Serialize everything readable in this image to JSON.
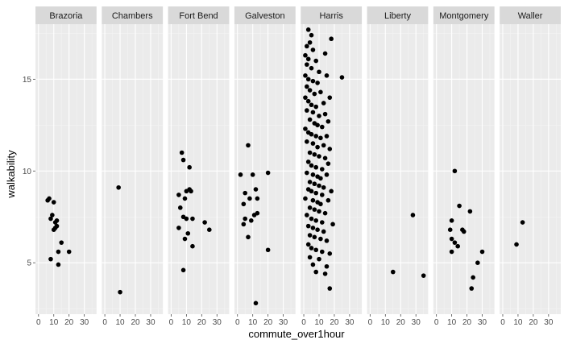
{
  "chart_data": {
    "type": "scatter",
    "xlabel": "commute_over1hour",
    "ylabel": "walkability",
    "xlim": [
      -2,
      38
    ],
    "ylim": [
      2.2,
      18.0
    ],
    "x_ticks": [
      0,
      10,
      20,
      30
    ],
    "y_ticks": [
      5,
      10,
      15
    ],
    "grid": true,
    "panel_background": "#ebebeb",
    "strip_background": "#d9d9d9",
    "point_color": "#000000",
    "facets": [
      {
        "name": "Brazoria",
        "points": [
          [
            6,
            8.4
          ],
          [
            7,
            8.5
          ],
          [
            8,
            7.4
          ],
          [
            9,
            7.6
          ],
          [
            10,
            8.3
          ],
          [
            11,
            7.2
          ],
          [
            12,
            7.3
          ],
          [
            12,
            7.0
          ],
          [
            11,
            6.9
          ],
          [
            10,
            6.8
          ],
          [
            15,
            6.1
          ],
          [
            13,
            5.6
          ],
          [
            20,
            5.6
          ],
          [
            8,
            5.2
          ],
          [
            13,
            4.9
          ]
        ]
      },
      {
        "name": "Chambers",
        "points": [
          [
            9,
            9.1
          ],
          [
            10,
            3.4
          ]
        ]
      },
      {
        "name": "Fort Bend",
        "points": [
          [
            7,
            11.0
          ],
          [
            8,
            10.6
          ],
          [
            12,
            10.2
          ],
          [
            5,
            8.7
          ],
          [
            10,
            8.9
          ],
          [
            12,
            9.0
          ],
          [
            13,
            8.9
          ],
          [
            9,
            8.5
          ],
          [
            6,
            8.0
          ],
          [
            8,
            7.5
          ],
          [
            10,
            7.4
          ],
          [
            14,
            7.4
          ],
          [
            22,
            7.2
          ],
          [
            25,
            6.8
          ],
          [
            5,
            6.9
          ],
          [
            11,
            6.6
          ],
          [
            9,
            6.3
          ],
          [
            14,
            5.9
          ],
          [
            8,
            4.6
          ]
        ]
      },
      {
        "name": "Galveston",
        "points": [
          [
            7,
            11.4
          ],
          [
            2,
            9.8
          ],
          [
            10,
            9.8
          ],
          [
            20,
            9.9
          ],
          [
            5,
            8.8
          ],
          [
            8,
            8.5
          ],
          [
            12,
            9.0
          ],
          [
            13,
            8.5
          ],
          [
            4,
            8.2
          ],
          [
            11,
            7.6
          ],
          [
            5,
            7.4
          ],
          [
            9,
            7.3
          ],
          [
            13,
            7.7
          ],
          [
            4,
            7.1
          ],
          [
            7,
            6.4
          ],
          [
            20,
            5.7
          ],
          [
            12,
            2.8
          ]
        ]
      },
      {
        "name": "Harris",
        "points": [
          [
            3,
            17.7
          ],
          [
            5,
            17.4
          ],
          [
            4,
            17.0
          ],
          [
            18,
            17.2
          ],
          [
            2,
            16.8
          ],
          [
            6,
            16.6
          ],
          [
            1,
            16.3
          ],
          [
            3,
            16.1
          ],
          [
            8,
            16.0
          ],
          [
            14,
            16.4
          ],
          [
            2,
            15.8
          ],
          [
            5,
            15.6
          ],
          [
            10,
            15.4
          ],
          [
            25,
            15.1
          ],
          [
            1,
            15.2
          ],
          [
            3,
            15.0
          ],
          [
            6,
            14.9
          ],
          [
            9,
            14.8
          ],
          [
            15,
            15.2
          ],
          [
            2,
            14.6
          ],
          [
            4,
            14.4
          ],
          [
            7,
            14.2
          ],
          [
            11,
            14.3
          ],
          [
            17,
            14.0
          ],
          [
            1,
            14.0
          ],
          [
            3,
            13.8
          ],
          [
            5,
            13.6
          ],
          [
            8,
            13.5
          ],
          [
            13,
            13.7
          ],
          [
            2,
            13.3
          ],
          [
            6,
            13.2
          ],
          [
            10,
            13.0
          ],
          [
            14,
            13.1
          ],
          [
            4,
            12.8
          ],
          [
            7,
            12.6
          ],
          [
            9,
            12.5
          ],
          [
            12,
            12.4
          ],
          [
            16,
            12.7
          ],
          [
            1,
            12.3
          ],
          [
            3,
            12.1
          ],
          [
            5,
            12.0
          ],
          [
            8,
            11.9
          ],
          [
            11,
            11.8
          ],
          [
            15,
            11.9
          ],
          [
            2,
            11.6
          ],
          [
            6,
            11.5
          ],
          [
            9,
            11.3
          ],
          [
            13,
            11.4
          ],
          [
            17,
            11.2
          ],
          [
            4,
            11.0
          ],
          [
            7,
            10.9
          ],
          [
            10,
            10.8
          ],
          [
            14,
            10.7
          ],
          [
            3,
            10.5
          ],
          [
            5,
            10.3
          ],
          [
            8,
            10.2
          ],
          [
            12,
            10.1
          ],
          [
            16,
            10.4
          ],
          [
            2,
            9.9
          ],
          [
            6,
            9.8
          ],
          [
            9,
            9.7
          ],
          [
            11,
            9.6
          ],
          [
            15,
            9.8
          ],
          [
            4,
            9.4
          ],
          [
            7,
            9.3
          ],
          [
            10,
            9.2
          ],
          [
            13,
            9.1
          ],
          [
            3,
            9.0
          ],
          [
            5,
            8.9
          ],
          [
            8,
            8.8
          ],
          [
            12,
            8.7
          ],
          [
            18,
            8.9
          ],
          [
            1,
            8.5
          ],
          [
            6,
            8.4
          ],
          [
            9,
            8.3
          ],
          [
            11,
            8.2
          ],
          [
            16,
            8.4
          ],
          [
            4,
            8.0
          ],
          [
            7,
            7.9
          ],
          [
            10,
            7.8
          ],
          [
            14,
            7.7
          ],
          [
            2,
            7.6
          ],
          [
            5,
            7.4
          ],
          [
            8,
            7.3
          ],
          [
            12,
            7.2
          ],
          [
            19,
            7.1
          ],
          [
            3,
            7.0
          ],
          [
            6,
            6.9
          ],
          [
            9,
            6.8
          ],
          [
            13,
            6.7
          ],
          [
            4,
            6.5
          ],
          [
            7,
            6.4
          ],
          [
            11,
            6.3
          ],
          [
            15,
            6.2
          ],
          [
            3,
            6.0
          ],
          [
            5,
            5.8
          ],
          [
            8,
            5.7
          ],
          [
            12,
            5.6
          ],
          [
            17,
            5.5
          ],
          [
            4,
            5.3
          ],
          [
            10,
            5.2
          ],
          [
            6,
            4.9
          ],
          [
            15,
            4.8
          ],
          [
            8,
            4.5
          ],
          [
            14,
            4.4
          ],
          [
            17,
            3.6
          ]
        ]
      },
      {
        "name": "Liberty",
        "points": [
          [
            28,
            7.6
          ],
          [
            15,
            4.5
          ],
          [
            35,
            4.3
          ]
        ]
      },
      {
        "name": "Montgomery",
        "points": [
          [
            12,
            10.0
          ],
          [
            15,
            8.1
          ],
          [
            22,
            7.8
          ],
          [
            10,
            7.3
          ],
          [
            17,
            6.8
          ],
          [
            9,
            6.8
          ],
          [
            18,
            6.7
          ],
          [
            10,
            6.3
          ],
          [
            12,
            6.1
          ],
          [
            14,
            5.9
          ],
          [
            10,
            5.6
          ],
          [
            30,
            5.6
          ],
          [
            27,
            5.0
          ],
          [
            24,
            4.2
          ],
          [
            23,
            3.6
          ]
        ]
      },
      {
        "name": "Waller",
        "points": [
          [
            13,
            7.2
          ],
          [
            9,
            6.0
          ]
        ]
      }
    ]
  }
}
